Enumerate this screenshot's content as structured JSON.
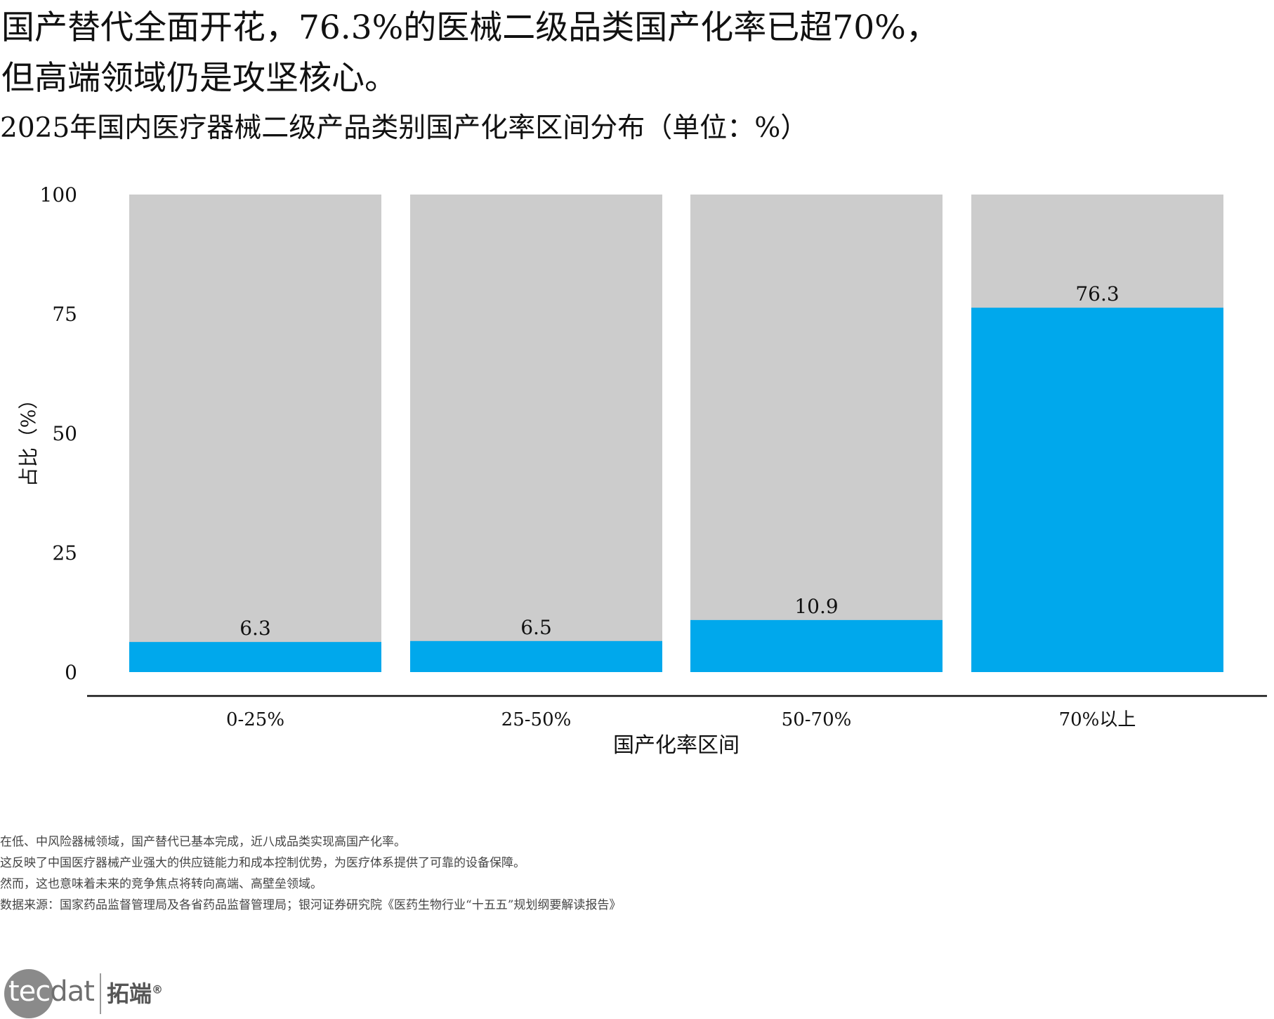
{
  "headline": {
    "line1": "国产替代全面开花，76.3%的医械二级品类国产化率已超70%，",
    "line2": "但高端领域仍是攻坚核心。"
  },
  "subtitle": "2025年国内医疗器械二级产品类别国产化率区间分布（单位：%）",
  "chart_data": {
    "type": "bar",
    "categories": [
      "0-25%",
      "25-50%",
      "50-70%",
      "70%以上"
    ],
    "values": [
      6.3,
      6.5,
      10.9,
      76.3
    ],
    "value_labels": [
      "6.3",
      "6.5",
      "10.9",
      "76.3"
    ],
    "background_values": [
      100,
      100,
      100,
      100
    ],
    "xlabel": "国产化率区间",
    "ylabel": "占比（%）",
    "ylim": [
      0,
      100
    ],
    "yticks": [
      0,
      25,
      50,
      75,
      100
    ],
    "grid": false,
    "colors": {
      "value": "#00a8ec",
      "background": "#cccccc",
      "axis": "#111111"
    }
  },
  "notes": [
    "在低、中风险器械领域，国产替代已基本完成，近八成品类实现高国产化率。",
    "这反映了中国医疗器械产业强大的供应链能力和成本控制优势，为医疗体系提供了可靠的设备保障。",
    "然而，这也意味着未来的竞争焦点将转向高端、高壁垒领域。",
    "数据来源：国家药品监督管理局及各省药品监督管理局；银河证券研究院《医药生物行业“十五五”规划纲要解读报告》"
  ],
  "logo": {
    "mark_main": "tec",
    "mark_tail": "dat",
    "name": "拓端",
    "reg": "®"
  }
}
